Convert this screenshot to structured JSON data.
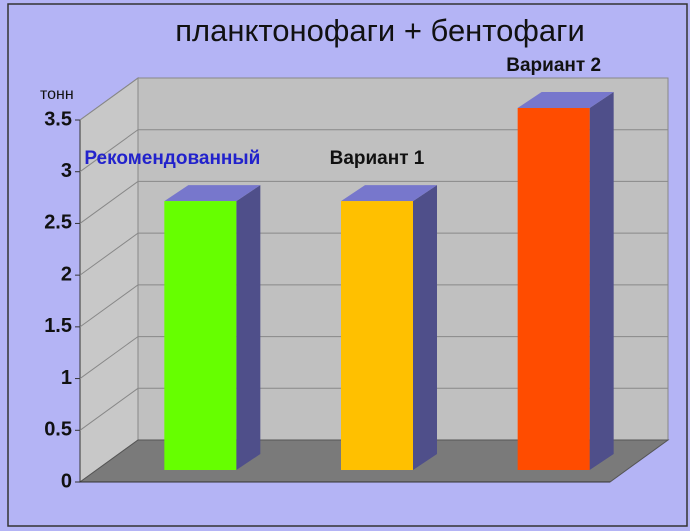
{
  "chart_data": {
    "type": "bar3d",
    "title": "планктонофаги + бентофаги",
    "y_label": "тонн",
    "categories": [
      "Рекомендованный",
      "Вариант 1",
      "Вариант 2"
    ],
    "category_label_colors": [
      "#2222cc",
      "#111111",
      "#111111"
    ],
    "series": [
      {
        "name": null,
        "colors": [
          "#66ff00",
          "#ffc000",
          "#ff4c00"
        ],
        "values": [
          2.6,
          2.6,
          3.5
        ]
      }
    ],
    "ylim": [
      0,
      3.5
    ],
    "yticks": [
      0,
      0.5,
      1,
      1.5,
      2,
      2.5,
      3,
      3.5
    ],
    "grid": true
  }
}
